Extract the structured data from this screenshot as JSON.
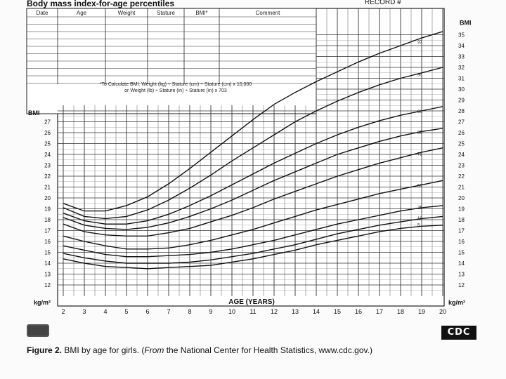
{
  "header": {
    "title": "Body mass index-for-age percentiles",
    "record": "RECORD #"
  },
  "table_headers": [
    "Date",
    "Age",
    "Weight",
    "Stature",
    "BMI*",
    "Comment"
  ],
  "formula": {
    "line1": "*To Calculate BMI: Weight (kg) ÷ Stature (cm) ÷ Stature (cm) x 10,000",
    "line2": "or Weight (lb) ÷ Stature (in) ÷ Stature (in) x 703"
  },
  "caption": {
    "figure": "Figure 2.",
    "text": " BMI by age for girls. (",
    "from": "From",
    "source": " the National Center for Health Statistics, www.cdc.gov.)"
  },
  "logo_text": "CDC",
  "chart_data": {
    "type": "line",
    "xlabel": "AGE (YEARS)",
    "ylabel_left": "BMI",
    "ylabel_right": "BMI",
    "unit_left": "kg/m²",
    "unit_right": "kg/m²",
    "xlim": [
      2,
      20
    ],
    "ylim": [
      12,
      35
    ],
    "left_ylim": [
      12,
      27
    ],
    "x_ticks": [
      2,
      3,
      4,
      5,
      6,
      7,
      8,
      9,
      10,
      11,
      12,
      13,
      14,
      15,
      16,
      17,
      18,
      19,
      20
    ],
    "right_ticks": [
      12,
      13,
      14,
      15,
      16,
      17,
      18,
      19,
      20,
      21,
      22,
      23,
      24,
      25,
      26,
      27,
      28,
      29,
      30,
      31,
      32,
      33,
      34,
      35
    ],
    "left_ticks": [
      12,
      13,
      14,
      15,
      16,
      17,
      18,
      19,
      20,
      21,
      22,
      23,
      24,
      25,
      26,
      27
    ],
    "grid": true,
    "x": [
      2,
      3,
      4,
      5,
      6,
      7,
      8,
      9,
      10,
      11,
      12,
      13,
      14,
      15,
      16,
      17,
      18,
      19,
      20
    ],
    "series": [
      {
        "name": "97",
        "values": [
          19.5,
          18.8,
          18.8,
          19.3,
          20.1,
          21.3,
          22.7,
          24.2,
          25.7,
          27.2,
          28.6,
          29.7,
          30.7,
          31.6,
          32.5,
          33.3,
          34.0,
          34.7,
          35.3
        ]
      },
      {
        "name": "95",
        "values": [
          19.1,
          18.3,
          18.1,
          18.3,
          18.9,
          19.8,
          20.9,
          22.1,
          23.4,
          24.6,
          25.8,
          27.0,
          28.0,
          28.9,
          29.7,
          30.4,
          31.0,
          31.5,
          32.0
        ]
      },
      {
        "name": "90",
        "values": [
          18.6,
          17.9,
          17.6,
          17.6,
          17.9,
          18.5,
          19.3,
          20.2,
          21.2,
          22.2,
          23.2,
          24.1,
          25.0,
          25.8,
          26.5,
          27.1,
          27.6,
          28.0,
          28.4
        ]
      },
      {
        "name": "85",
        "values": [
          18.2,
          17.5,
          17.2,
          17.1,
          17.3,
          17.7,
          18.3,
          19.0,
          19.8,
          20.7,
          21.6,
          22.4,
          23.2,
          24.0,
          24.6,
          25.2,
          25.7,
          26.1,
          26.4
        ]
      },
      {
        "name": "75",
        "values": [
          17.6,
          16.9,
          16.6,
          16.5,
          16.5,
          16.8,
          17.2,
          17.8,
          18.4,
          19.1,
          19.9,
          20.6,
          21.3,
          22.0,
          22.6,
          23.2,
          23.7,
          24.2,
          24.6
        ]
      },
      {
        "name": "50",
        "values": [
          16.5,
          16.0,
          15.6,
          15.3,
          15.3,
          15.4,
          15.7,
          16.1,
          16.6,
          17.1,
          17.7,
          18.3,
          18.9,
          19.4,
          19.9,
          20.4,
          20.8,
          21.2,
          21.6
        ]
      },
      {
        "name": "25",
        "values": [
          15.6,
          15.2,
          14.8,
          14.6,
          14.6,
          14.7,
          14.8,
          15.0,
          15.3,
          15.7,
          16.1,
          16.6,
          17.1,
          17.6,
          18.0,
          18.4,
          18.8,
          19.1,
          19.3
        ]
      },
      {
        "name": "10",
        "values": [
          14.9,
          14.5,
          14.2,
          14.0,
          14.0,
          14.0,
          14.1,
          14.3,
          14.6,
          14.9,
          15.3,
          15.7,
          16.2,
          16.7,
          17.1,
          17.5,
          17.8,
          18.1,
          18.3
        ]
      },
      {
        "name": "5",
        "values": [
          14.4,
          14.0,
          13.7,
          13.6,
          13.5,
          13.6,
          13.7,
          13.8,
          14.1,
          14.4,
          14.8,
          15.2,
          15.7,
          16.1,
          16.5,
          16.9,
          17.2,
          17.4,
          17.5
        ]
      }
    ]
  }
}
